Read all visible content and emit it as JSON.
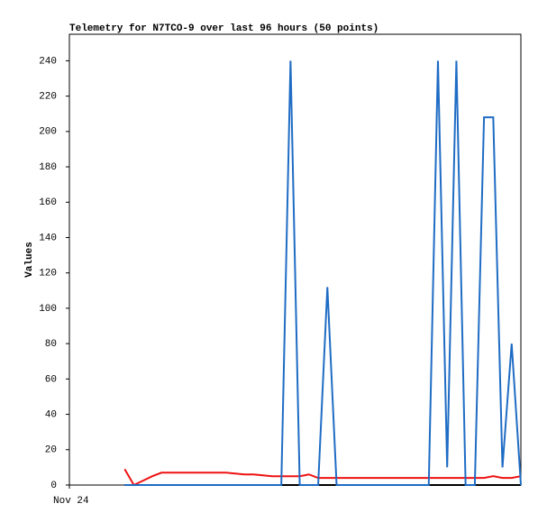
{
  "chart_data": {
    "type": "line",
    "title": "Telemetry for N7TCO-9 over last 96 hours (50 points)",
    "y_label": "Values",
    "categories": [
      "Nov 24",
      null,
      null,
      null,
      null,
      null,
      null,
      null,
      null,
      null,
      null,
      null,
      null,
      null,
      null,
      null,
      null,
      null,
      null,
      null,
      null,
      null,
      null,
      null,
      null,
      null,
      null,
      null,
      null,
      null,
      null,
      null,
      null,
      null,
      null,
      null,
      null,
      null,
      null,
      null,
      null,
      null,
      null,
      null,
      null,
      null,
      null,
      null,
      null,
      null
    ],
    "ylim": [
      0,
      255
    ],
    "yticks": [
      0,
      20,
      40,
      60,
      80,
      100,
      120,
      140,
      160,
      180,
      200,
      220,
      240
    ],
    "series": [
      {
        "color": "#000000",
        "values": [
          null,
          null,
          null,
          null,
          null,
          null,
          0,
          0,
          0,
          0,
          0,
          0,
          0,
          0,
          0,
          0,
          0,
          0,
          0,
          0,
          0,
          0,
          0,
          0,
          0,
          0,
          0,
          0,
          0,
          0,
          0,
          0,
          0,
          0,
          0,
          0,
          0,
          0,
          0,
          0,
          0,
          0,
          0,
          0,
          0,
          0,
          0,
          0,
          0,
          0
        ]
      },
      {
        "color": "#ee1111",
        "values": [
          null,
          null,
          null,
          null,
          null,
          null,
          9,
          0,
          2.5,
          5,
          7,
          7,
          7,
          7,
          7,
          7,
          7,
          7,
          6.5,
          6,
          6,
          5.5,
          5,
          5,
          5,
          5,
          6,
          4,
          4,
          4,
          4,
          4,
          4,
          4,
          4,
          4,
          4,
          4,
          4,
          4,
          4,
          4,
          4,
          4,
          4,
          4,
          5,
          4,
          4,
          5
        ]
      },
      {
        "color": "#1f6cc4",
        "values": [
          null,
          null,
          null,
          null,
          null,
          null,
          0,
          0,
          0,
          0,
          0,
          0,
          0,
          0,
          0,
          0,
          0,
          0,
          0,
          0,
          0,
          0,
          0,
          0,
          240,
          0,
          0,
          0,
          112,
          0,
          0,
          0,
          0,
          0,
          0,
          0,
          0,
          0,
          0,
          0,
          240,
          10,
          240,
          0,
          0,
          208,
          208,
          10,
          80,
          0
        ]
      }
    ]
  }
}
